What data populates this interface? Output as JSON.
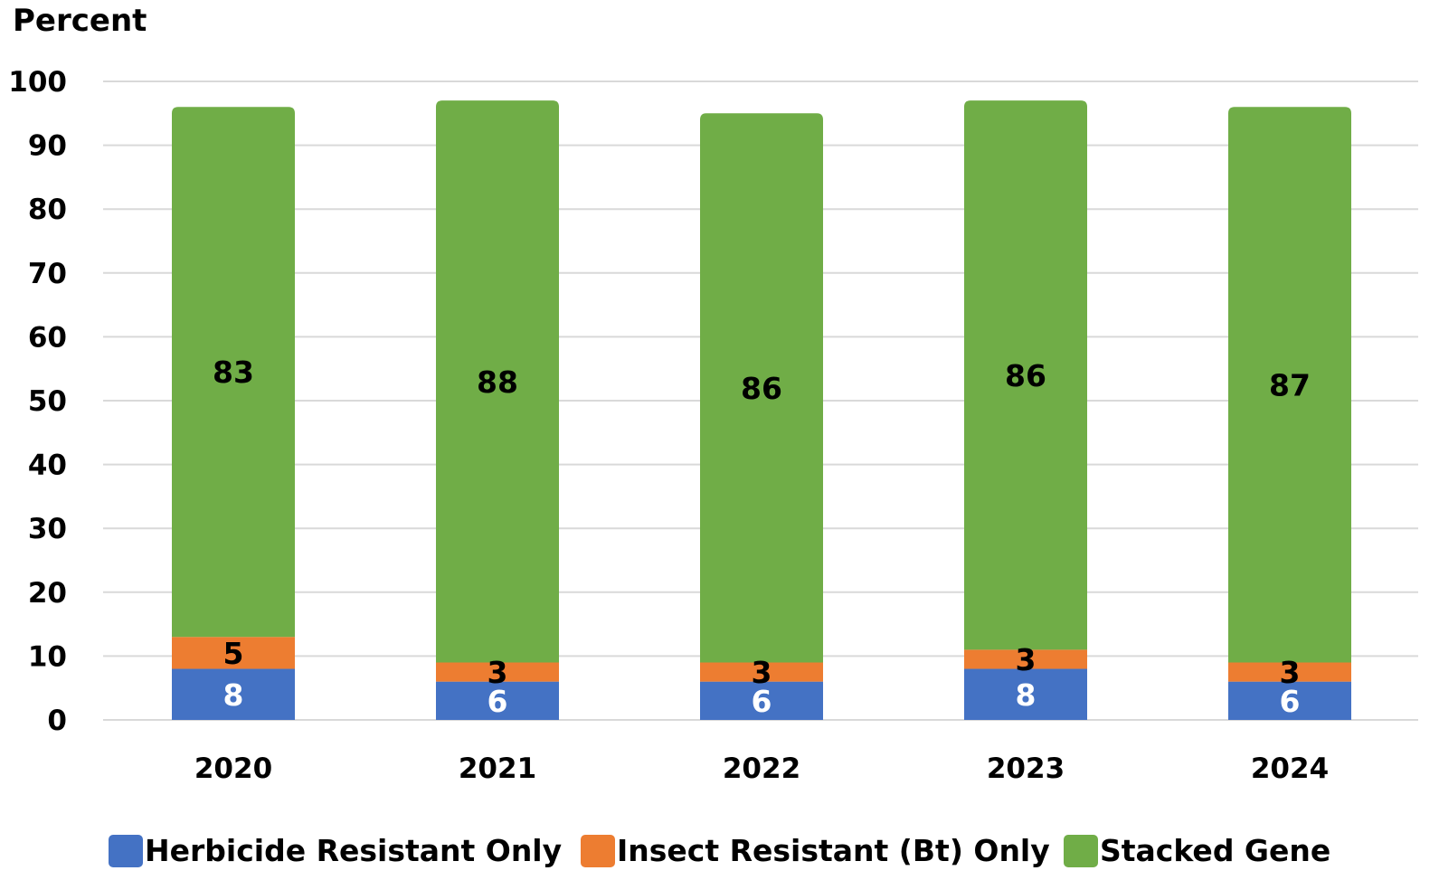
{
  "chart_data": {
    "type": "bar",
    "stacked": true,
    "title": "",
    "ylabel": "Percent",
    "xlabel": "",
    "ylim": [
      0,
      100
    ],
    "yticks": [
      0,
      10,
      20,
      30,
      40,
      50,
      60,
      70,
      80,
      90,
      100
    ],
    "grid": true,
    "legend_position": "bottom",
    "categories": [
      "2020",
      "2021",
      "2022",
      "2023",
      "2024"
    ],
    "series": [
      {
        "name": "Herbicide Resistant Only",
        "color": "#4472c4",
        "label_color": "#ffffff",
        "values": [
          8,
          6,
          6,
          8,
          6
        ]
      },
      {
        "name": "Insect Resistant (Bt) Only",
        "color": "#ed7d31",
        "label_color": "#000000",
        "values": [
          5,
          3,
          3,
          3,
          3
        ]
      },
      {
        "name": "Stacked Gene",
        "color": "#70ad47",
        "label_color": "#000000",
        "values": [
          83,
          88,
          86,
          86,
          87
        ]
      }
    ]
  }
}
